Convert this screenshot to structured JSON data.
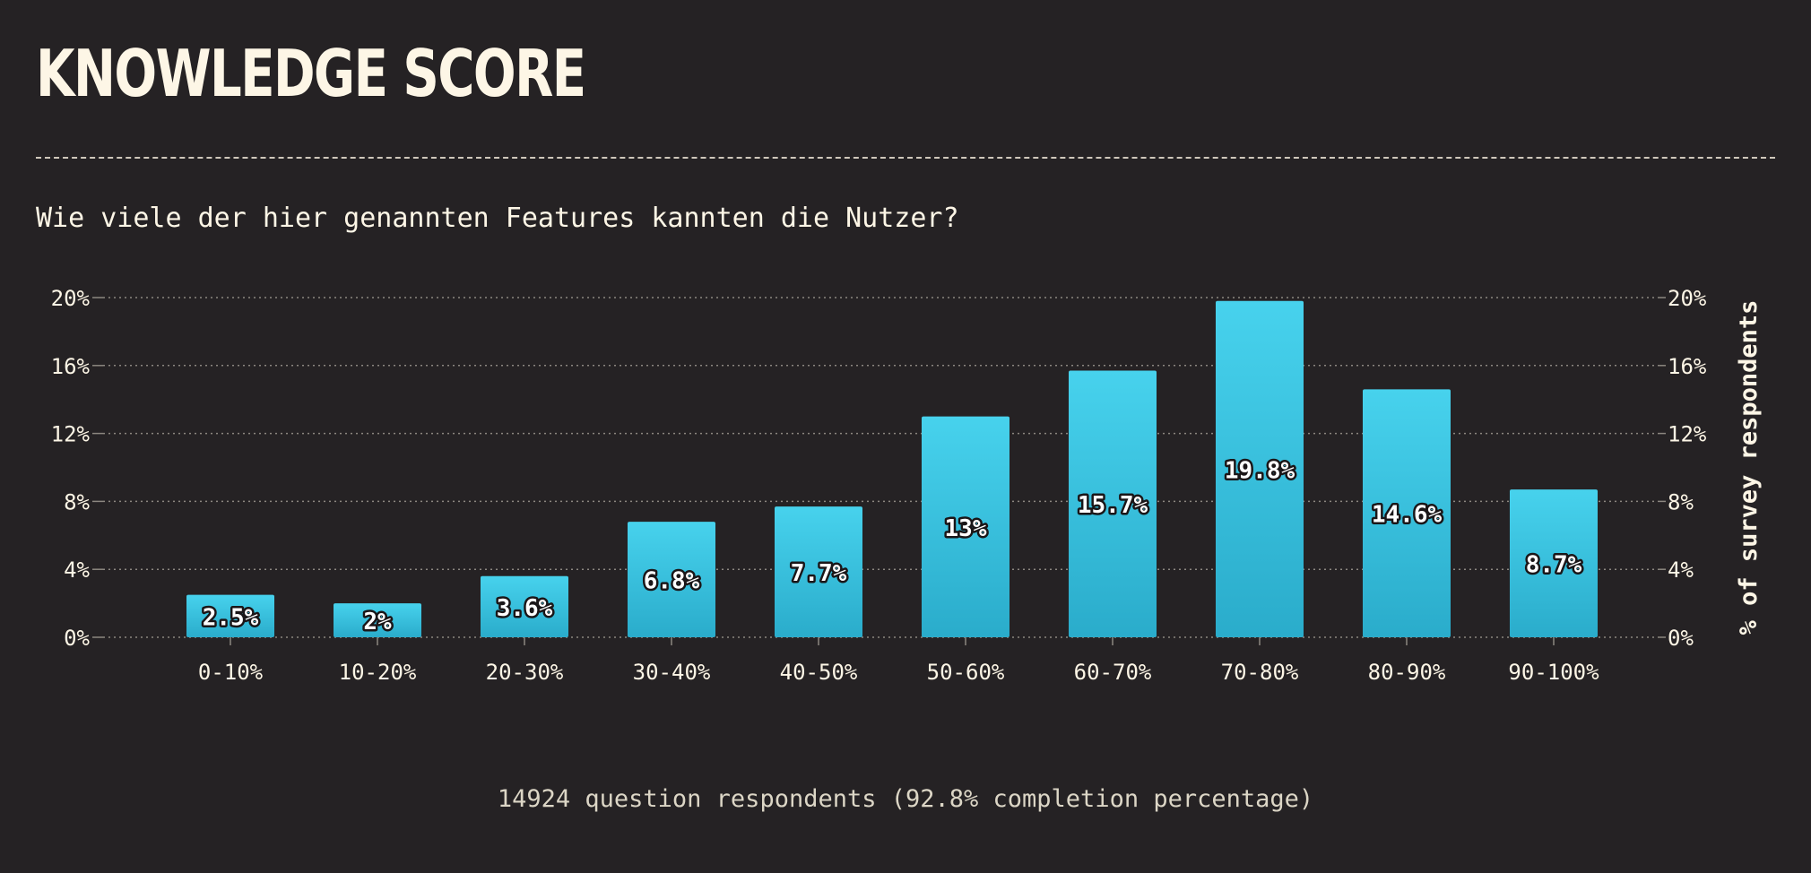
{
  "title": "KNOWLEDGE SCORE",
  "subtitle": "Wie viele der hier genannten Features kannten die Nutzer?",
  "footer": "14924 question respondents (92.8% completion percentage)",
  "colors": {
    "background": "#252224",
    "bar_top": "#47d2ed",
    "bar_bottom": "#2aaccb",
    "text": "#fdf6e6"
  },
  "chart_data": {
    "type": "bar",
    "categories": [
      "0-10%",
      "10-20%",
      "20-30%",
      "30-40%",
      "40-50%",
      "50-60%",
      "60-70%",
      "70-80%",
      "80-90%",
      "90-100%"
    ],
    "values": [
      2.5,
      2,
      3.6,
      6.8,
      7.7,
      13,
      15.7,
      19.8,
      14.6,
      8.7
    ],
    "data_labels": [
      "2.5%",
      "2%",
      "3.6%",
      "6.8%",
      "7.7%",
      "13%",
      "15.7%",
      "19.8%",
      "14.6%",
      "8.7%"
    ],
    "ylabel": "% of survey respondents",
    "ylim": [
      0,
      20
    ],
    "yticks": [
      0,
      4,
      8,
      12,
      16,
      20
    ],
    "ytick_labels": [
      "0%",
      "4%",
      "8%",
      "12%",
      "16%",
      "20%"
    ],
    "grid": true
  }
}
